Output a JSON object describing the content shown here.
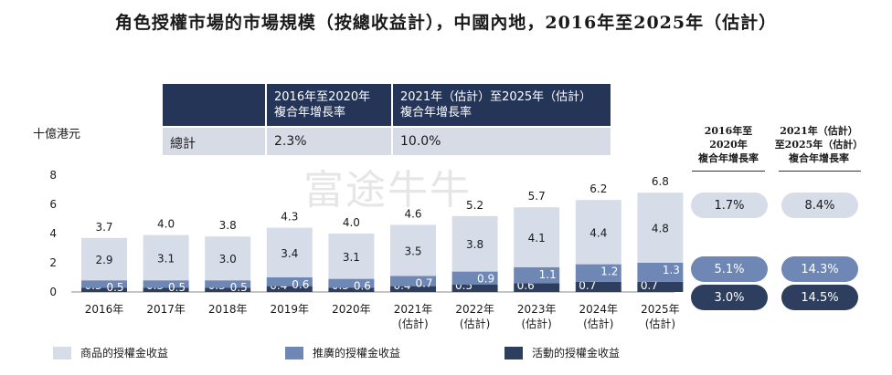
{
  "title": "角色授權市場的市場規模（按總收益計），中國內地，2016年至2025年（估計）",
  "watermark": "富途牛牛",
  "unit_label": "十億港元",
  "cagr_table": {
    "col1_header": [
      "2016年至2020年",
      "複合年增長率"
    ],
    "col2_header": [
      "2021年（估計）至2025年（估計）",
      "複合年增長率"
    ],
    "row_label": "總計",
    "row_value1": "2.3%",
    "row_value2": "10.0%"
  },
  "side_cagr": {
    "header1": [
      "2016年至",
      "2020年",
      "複合年增長率"
    ],
    "header2": [
      "2021年（估計）",
      "至2025年（估計）",
      "複合年增長率"
    ],
    "rows": [
      {
        "v1": "1.7%",
        "v2": "8.4%"
      },
      {
        "v1": "5.1%",
        "v2": "14.3%"
      },
      {
        "v1": "3.0%",
        "v2": "14.5%"
      }
    ]
  },
  "colors": {
    "merch": "#d6dde9",
    "promo": "#6f87b4",
    "event": "#2e3e5e",
    "header": "#243558"
  },
  "chart_data": {
    "type": "bar",
    "stacked": true,
    "categories": [
      [
        "2016年"
      ],
      [
        "2017年"
      ],
      [
        "2018年"
      ],
      [
        "2019年"
      ],
      [
        "2020年"
      ],
      [
        "2021年",
        "(估計)"
      ],
      [
        "2022年",
        "(估計)"
      ],
      [
        "2023年",
        "(估計)"
      ],
      [
        "2024年",
        "(估計)"
      ],
      [
        "2025年",
        "(估計)"
      ]
    ],
    "totals": [
      "3.7",
      "4.0",
      "3.8",
      "4.3",
      "4.0",
      "4.6",
      "5.2",
      "5.7",
      "6.2",
      "6.8"
    ],
    "ylim": [
      0,
      8
    ],
    "yticks": [
      0,
      2,
      4,
      6,
      8
    ],
    "series": [
      {
        "name": "活動的授權金收益",
        "values": [
          0.3,
          0.3,
          0.3,
          0.4,
          0.3,
          0.4,
          0.5,
          0.6,
          0.7,
          0.7
        ]
      },
      {
        "name": "推廣的授權金收益",
        "values": [
          0.5,
          0.5,
          0.5,
          0.6,
          0.6,
          0.7,
          0.9,
          1.1,
          1.2,
          1.3
        ]
      },
      {
        "name": "商品的授權金收益",
        "values": [
          2.9,
          3.1,
          3.0,
          3.4,
          3.1,
          3.5,
          3.8,
          4.1,
          4.4,
          4.8
        ]
      }
    ]
  },
  "legend": [
    {
      "label": "商品的授權金收益"
    },
    {
      "label": "推廣的授權金收益"
    },
    {
      "label": "活動的授權金收益"
    }
  ]
}
